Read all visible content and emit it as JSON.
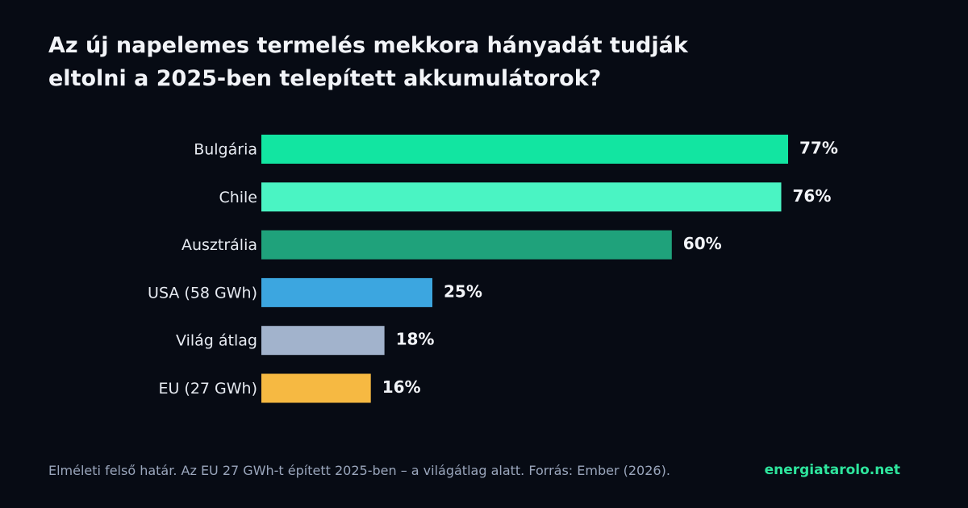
{
  "title_line1": "Az új napelemes termelés mekkora hányadát tudják",
  "title_line2": "eltolni a 2025-ben telepített akkumulátorok?",
  "footer": {
    "note": "Elméleti felső határ. Az EU 27 GWh-t épített 2025-ben – a világátlag alatt. Forrás: Ember (2026).",
    "brand": "energiatarolo.net",
    "brand_color": "#2ee59d"
  },
  "chart_data": {
    "type": "bar",
    "orientation": "horizontal",
    "categories": [
      "Bulgária",
      "Chile",
      "Ausztrália",
      "USA (58 GWh)",
      "Világ átlag",
      "EU (27 GWh)"
    ],
    "values": [
      77,
      76,
      60,
      25,
      18,
      16
    ],
    "value_labels": [
      "77%",
      "76%",
      "60%",
      "25%",
      "18%",
      "16%"
    ],
    "colors": [
      "#12e5a1",
      "#4af4c3",
      "#1fa27b",
      "#3ca6e0",
      "#a2b3cc",
      "#f6b942"
    ],
    "xlim": [
      0,
      100
    ],
    "grid": false,
    "legend": "none"
  }
}
